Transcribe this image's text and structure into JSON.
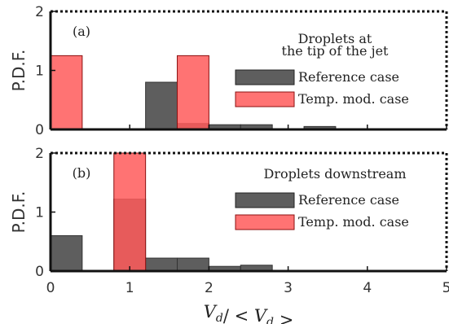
{
  "chart_data": [
    {
      "type": "bar",
      "panel_label": "(a)",
      "annotation": [
        "Droplets at",
        "the tip of the jet"
      ],
      "ylabel": "P.D.F.",
      "xlim": [
        0,
        5
      ],
      "ylim": [
        0,
        2
      ],
      "yticks": [
        "0",
        "1",
        "2"
      ],
      "bin_width": 0.4,
      "series": [
        {
          "name": "Reference case",
          "color": "#555555",
          "bins": [
            {
              "x0": 1.2,
              "x1": 1.6,
              "value": 0.8
            },
            {
              "x0": 1.6,
              "x1": 2.0,
              "value": 0.1
            },
            {
              "x0": 2.0,
              "x1": 2.4,
              "value": 0.08
            },
            {
              "x0": 2.4,
              "x1": 2.8,
              "value": 0.08
            },
            {
              "x0": 3.2,
              "x1": 3.6,
              "value": 0.05
            }
          ]
        },
        {
          "name": "Temp. mod. case",
          "color": "#ff5a5a",
          "bins": [
            {
              "x0": 0.0,
              "x1": 0.4,
              "value": 1.25
            },
            {
              "x0": 1.6,
              "x1": 2.0,
              "value": 1.25
            }
          ]
        }
      ]
    },
    {
      "type": "bar",
      "panel_label": "(b)",
      "annotation": [
        "Droplets downstream"
      ],
      "ylabel": "P.D.F.",
      "xlabel": "V_d/ < V_d >",
      "xlim": [
        0,
        5
      ],
      "ylim": [
        0,
        2
      ],
      "xticks": [
        "0",
        "1",
        "2",
        "3",
        "4",
        "5"
      ],
      "yticks": [
        "0",
        "1",
        "2"
      ],
      "bin_width": 0.4,
      "series": [
        {
          "name": "Reference case",
          "color": "#555555",
          "bins": [
            {
              "x0": 0.0,
              "x1": 0.4,
              "value": 0.6
            },
            {
              "x0": 0.8,
              "x1": 1.2,
              "value": 1.22
            },
            {
              "x0": 1.2,
              "x1": 1.6,
              "value": 0.22
            },
            {
              "x0": 1.6,
              "x1": 2.0,
              "value": 0.22
            },
            {
              "x0": 2.0,
              "x1": 2.4,
              "value": 0.08
            },
            {
              "x0": 2.4,
              "x1": 2.8,
              "value": 0.1
            }
          ]
        },
        {
          "name": "Temp. mod. case",
          "color": "#ff5a5a",
          "bins": [
            {
              "x0": 0.8,
              "x1": 1.2,
              "value": 2.0
            }
          ]
        }
      ]
    }
  ]
}
